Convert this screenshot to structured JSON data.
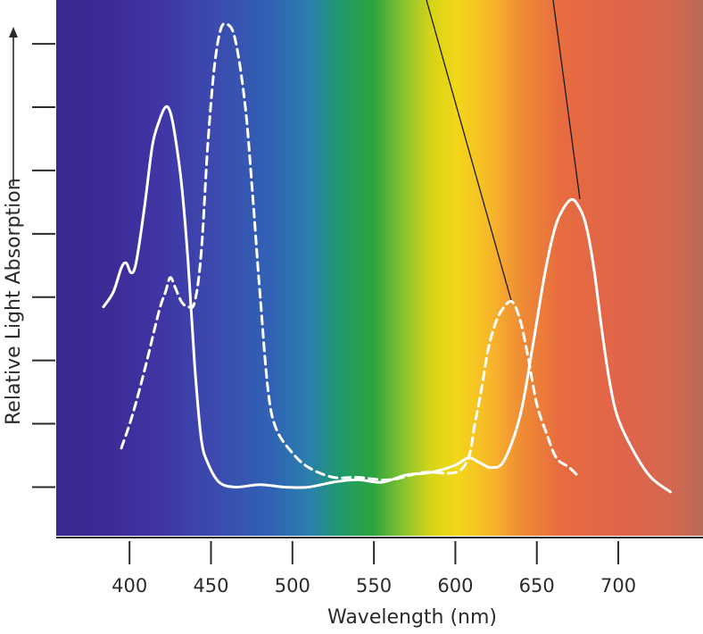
{
  "chart_data": {
    "type": "line",
    "title": "",
    "xlabel": "Wavelength (nm)",
    "ylabel": "Relative Light Absorption",
    "xlim": [
      355,
      752
    ],
    "ylim": [
      0,
      1.1
    ],
    "grid": false,
    "legend": "none",
    "x_ticks": [
      {
        "value": 400,
        "label": "400"
      },
      {
        "value": 450,
        "label": "450"
      },
      {
        "value": 500,
        "label": "500"
      },
      {
        "value": 550,
        "label": "550"
      },
      {
        "value": 600,
        "label": "600"
      },
      {
        "value": 650,
        "label": "650"
      },
      {
        "value": 700,
        "label": "700"
      }
    ],
    "y_ticks": [
      0.1,
      0.23,
      0.36,
      0.49,
      0.62,
      0.75,
      0.88,
      1.01
    ],
    "series": [
      {
        "line_style": "solid",
        "color": "#ffffff",
        "x": [
          384,
          390,
          395,
          398,
          401,
          404,
          409,
          414,
          418,
          422,
          425,
          428,
          432,
          436,
          440,
          444,
          448,
          455,
          465,
          480,
          495,
          510,
          525,
          540,
          555,
          570,
          585,
          600,
          608,
          615,
          622,
          630,
          640,
          648,
          655,
          661,
          666,
          671,
          675,
          680,
          685,
          690,
          695,
          700,
          710,
          720,
          732
        ],
        "y": [
          0.47,
          0.5,
          0.55,
          0.56,
          0.54,
          0.56,
          0.67,
          0.8,
          0.85,
          0.88,
          0.87,
          0.82,
          0.72,
          0.56,
          0.35,
          0.2,
          0.15,
          0.11,
          0.1,
          0.105,
          0.1,
          0.1,
          0.11,
          0.115,
          0.11,
          0.125,
          0.13,
          0.145,
          0.16,
          0.15,
          0.14,
          0.155,
          0.25,
          0.4,
          0.54,
          0.63,
          0.67,
          0.69,
          0.68,
          0.64,
          0.55,
          0.42,
          0.31,
          0.24,
          0.17,
          0.12,
          0.09
        ]
      },
      {
        "line_style": "dashed",
        "color": "#ffffff",
        "x": [
          395,
          402,
          410,
          418,
          422,
          425,
          428,
          432,
          436,
          440,
          444,
          448,
          452,
          456,
          460,
          464,
          468,
          472,
          476,
          480,
          485,
          490,
          500,
          510,
          525,
          540,
          560,
          580,
          600,
          608,
          612,
          616,
          620,
          625,
          630,
          635,
          640,
          645,
          650,
          656,
          662,
          670,
          676
        ],
        "y": [
          0.18,
          0.25,
          0.35,
          0.46,
          0.5,
          0.53,
          0.51,
          0.48,
          0.47,
          0.48,
          0.58,
          0.8,
          0.96,
          1.04,
          1.05,
          1.03,
          0.96,
          0.85,
          0.68,
          0.5,
          0.3,
          0.22,
          0.17,
          0.14,
          0.12,
          0.12,
          0.115,
          0.13,
          0.13,
          0.16,
          0.23,
          0.3,
          0.38,
          0.44,
          0.47,
          0.48,
          0.44,
          0.36,
          0.27,
          0.21,
          0.16,
          0.14,
          0.12
        ]
      }
    ]
  }
}
